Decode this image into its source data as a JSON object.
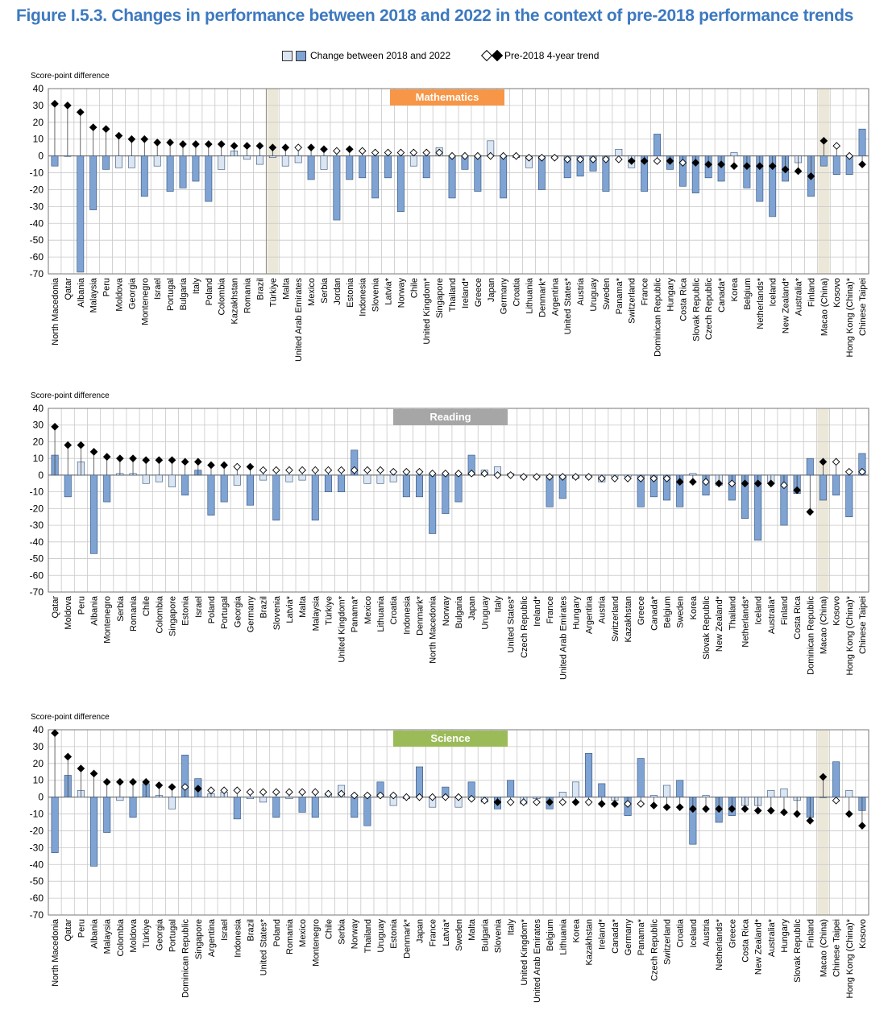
{
  "title": "Figure I.5.3. Changes in performance between 2018 and 2022 in the context of pre-2018 performance trends",
  "legend": {
    "bar_label": "Change between 2018 and 2022",
    "trend_label": "Pre-2018 4-year trend"
  },
  "colors": {
    "title": "#3d79c0",
    "bar_significant": "#7fa3d3",
    "bar_not_significant": "#dbe6f2",
    "bar_stroke": "#2f4f7a",
    "trend_significant": "#000000",
    "trend_not_significant": "#ffffff",
    "grid": "#c8c8c8",
    "separator_band": "#ece8d9",
    "math_banner": "#f79646",
    "reading_banner": "#a6a6a6",
    "science_banner": "#9bbb59"
  },
  "chart_data": [
    {
      "type": "bar",
      "subject": "Mathematics",
      "ylabel": "Score-point difference",
      "ylim": [
        -70,
        40
      ],
      "yticks": [
        40,
        30,
        20,
        10,
        0,
        -10,
        -20,
        -30,
        -40,
        -50,
        -60,
        -70
      ],
      "grid": true,
      "categories": [
        "North Macedonia",
        "Qatar",
        "Albania",
        "Malaysia",
        "Peru",
        "Moldova",
        "Georgia",
        "Montenegro",
        "Israel",
        "Portugal",
        "Bulgaria",
        "Italy",
        "Poland",
        "Colombia",
        "Kazakhstan",
        "Romania",
        "Brazil",
        "Türkiye",
        "Malta",
        "United Arab Emirates",
        "Mexico",
        "Serbia",
        "Jordan",
        "Estonia",
        "Indonesia",
        "Slovenia",
        "Latvia*",
        "Norway",
        "Chile",
        "United Kingdom*",
        "Singapore",
        "Thailand",
        "Ireland*",
        "Greece",
        "Japan",
        "Germany",
        "Croatia",
        "Lithuania",
        "Denmark*",
        "Argentina",
        "United States*",
        "Austria",
        "Uruguay",
        "Sweden",
        "Panama*",
        "Switzerland",
        "France",
        "Dominican Republic",
        "Hungary",
        "Costa Rica",
        "Slovak Republic",
        "Czech Republic",
        "Canada*",
        "Korea",
        "Belgium",
        "Netherlands*",
        "Iceland",
        "New Zealand*",
        "Australia*",
        "Finland",
        "Macao (China)",
        "Kosovo",
        "Hong Kong (China)*",
        "Chinese Taipei"
      ],
      "separators_after": [
        16,
        59
      ],
      "change_2018_2022": [
        -6,
        0,
        -69,
        -32,
        -8,
        -7,
        -7,
        -24,
        -6,
        -21,
        -19,
        -15,
        -27,
        -8,
        3,
        -2,
        -5,
        -1,
        -6,
        -4,
        -14,
        -8,
        -38,
        -14,
        -13,
        -25,
        -13,
        -33,
        -6,
        -13,
        5,
        -25,
        -8,
        -21,
        9,
        -25,
        -1,
        -7,
        -20,
        -1,
        -13,
        -12,
        -9,
        -21,
        4,
        -7,
        -21,
        13,
        -8,
        -18,
        -22,
        -13,
        -15,
        2,
        -19,
        -27,
        -36,
        -15,
        -4,
        -24,
        -6,
        -11,
        -11,
        16
      ],
      "change_significant": [
        true,
        false,
        true,
        true,
        true,
        false,
        false,
        true,
        false,
        true,
        true,
        true,
        true,
        false,
        false,
        false,
        false,
        false,
        false,
        false,
        true,
        false,
        true,
        true,
        true,
        true,
        true,
        true,
        false,
        true,
        false,
        true,
        true,
        true,
        false,
        true,
        false,
        false,
        true,
        false,
        true,
        true,
        true,
        true,
        false,
        false,
        true,
        true,
        true,
        true,
        true,
        true,
        true,
        false,
        true,
        true,
        true,
        true,
        false,
        true,
        true,
        true,
        true,
        true
      ],
      "trend": [
        31,
        30,
        26,
        17,
        16,
        12,
        10,
        10,
        8,
        8,
        7,
        7,
        7,
        7,
        6,
        6,
        6,
        5,
        5,
        5,
        5,
        4,
        3,
        4,
        3,
        2,
        2,
        2,
        2,
        2,
        2,
        0,
        0,
        0,
        0,
        0,
        0,
        -1,
        -1,
        -1,
        -2,
        -2,
        -2,
        -2,
        -2,
        -3,
        -3,
        -3,
        -3,
        -4,
        -4,
        -5,
        -5,
        -6,
        -6,
        -6,
        -6,
        -8,
        -9,
        -12,
        9,
        6,
        0,
        -5
      ],
      "trend_significant": [
        true,
        true,
        true,
        true,
        true,
        true,
        true,
        true,
        true,
        true,
        true,
        true,
        true,
        true,
        true,
        true,
        true,
        true,
        true,
        false,
        true,
        true,
        false,
        true,
        false,
        false,
        false,
        false,
        false,
        false,
        false,
        false,
        false,
        false,
        false,
        false,
        false,
        false,
        false,
        false,
        false,
        false,
        false,
        false,
        false,
        true,
        true,
        false,
        true,
        false,
        true,
        true,
        true,
        true,
        true,
        true,
        true,
        true,
        true,
        true,
        true,
        false,
        false,
        true
      ]
    },
    {
      "type": "bar",
      "subject": "Reading",
      "ylabel": "Score-point difference",
      "ylim": [
        -70,
        40
      ],
      "yticks": [
        40,
        30,
        20,
        10,
        0,
        -10,
        -20,
        -30,
        -40,
        -50,
        -60,
        -70
      ],
      "grid": true,
      "categories": [
        "Qatar",
        "Moldova",
        "Peru",
        "Albania",
        "Montenegro",
        "Serbia",
        "Romania",
        "Chile",
        "Colombia",
        "Singapore",
        "Estonia",
        "Israel",
        "Poland",
        "Portugal",
        "Georgia",
        "Germany",
        "Brazil",
        "Slovenia",
        "Latvia*",
        "Malta",
        "Malaysia",
        "Türkiye",
        "United Kingdom*",
        "Panama*",
        "Mexico",
        "Lithuania",
        "Croatia",
        "Indonesia",
        "Denmark*",
        "North Macedonia",
        "Norway",
        "Bulgaria",
        "Japan",
        "Uruguay",
        "Italy",
        "United States*",
        "Czech Republic",
        "Ireland*",
        "France",
        "United Arab Emirates",
        "Hungary",
        "Argentina",
        "Austria",
        "Switzerland",
        "Kazakhstan",
        "Greece",
        "Canada*",
        "Belgium",
        "Sweden",
        "Korea",
        "Slovak Republic",
        "New Zealand*",
        "Thailand",
        "Netherlands*",
        "Iceland",
        "Australia*",
        "Finland",
        "Costa Rica",
        "Dominican Republic",
        "Macao (China)",
        "Kosovo",
        "Hong Kong (China)*",
        "Chinese Taipei"
      ],
      "separators_after": [
        58
      ],
      "change_2018_2022": [
        12,
        -13,
        8,
        -47,
        -16,
        1,
        1,
        -5,
        -4,
        -7,
        -12,
        3,
        -24,
        -16,
        -6,
        -18,
        -3,
        -27,
        -4,
        -3,
        -27,
        -10,
        -10,
        15,
        -5,
        -5,
        -4,
        -13,
        -13,
        -35,
        -23,
        -16,
        12,
        3,
        5,
        1,
        -1,
        -1,
        -19,
        -14,
        -2,
        -1,
        -4,
        -1,
        -1,
        -19,
        -13,
        -15,
        -19,
        1,
        -12,
        -6,
        -15,
        -26,
        -39,
        -5,
        -30,
        -11,
        10,
        -15,
        -12,
        -25,
        13
      ],
      "change_significant": [
        true,
        true,
        false,
        true,
        true,
        false,
        false,
        false,
        false,
        false,
        true,
        true,
        true,
        true,
        false,
        true,
        false,
        true,
        false,
        false,
        true,
        true,
        true,
        true,
        false,
        false,
        false,
        true,
        true,
        true,
        true,
        true,
        true,
        false,
        false,
        false,
        false,
        false,
        true,
        true,
        false,
        false,
        false,
        false,
        false,
        true,
        true,
        true,
        true,
        false,
        true,
        false,
        true,
        true,
        true,
        false,
        true,
        true,
        true,
        true,
        true,
        true,
        true
      ],
      "trend": [
        29,
        18,
        18,
        14,
        11,
        10,
        10,
        9,
        9,
        9,
        8,
        8,
        6,
        6,
        5,
        5,
        3,
        3,
        3,
        3,
        3,
        3,
        3,
        3,
        3,
        3,
        2,
        2,
        2,
        1,
        1,
        1,
        1,
        1,
        0,
        0,
        -1,
        -1,
        -1,
        -1,
        -1,
        -1,
        -2,
        -2,
        -2,
        -2,
        -2,
        -2,
        -4,
        -4,
        -4,
        -5,
        -5,
        -5,
        -5,
        -5,
        -6,
        -9,
        -22,
        8,
        8,
        2,
        2
      ],
      "trend_significant": [
        true,
        true,
        true,
        true,
        true,
        true,
        true,
        true,
        true,
        true,
        true,
        true,
        true,
        true,
        false,
        true,
        false,
        false,
        false,
        false,
        false,
        false,
        false,
        false,
        false,
        false,
        false,
        false,
        false,
        false,
        false,
        false,
        false,
        false,
        false,
        false,
        false,
        false,
        false,
        false,
        false,
        false,
        false,
        false,
        false,
        false,
        false,
        false,
        true,
        true,
        false,
        true,
        false,
        true,
        true,
        true,
        false,
        true,
        true,
        true,
        false,
        false,
        false
      ]
    },
    {
      "type": "bar",
      "subject": "Science",
      "ylabel": "Score-point difference",
      "ylim": [
        -70,
        40
      ],
      "yticks": [
        40,
        30,
        20,
        10,
        0,
        -10,
        -20,
        -30,
        -40,
        -50,
        -60,
        -70
      ],
      "grid": true,
      "categories": [
        "North Macedonia",
        "Qatar",
        "Peru",
        "Albania",
        "Malaysia",
        "Colombia",
        "Moldova",
        "Türkiye",
        "Georgia",
        "Portugal",
        "Dominican Republic",
        "Singapore",
        "Argentina",
        "Israel",
        "Indonesia",
        "Brazil",
        "United States*",
        "Poland",
        "Romania",
        "Mexico",
        "Montenegro",
        "Chile",
        "Serbia",
        "Norway",
        "Thailand",
        "Uruguay",
        "Estonia",
        "Denmark*",
        "Japan",
        "France",
        "Latvia*",
        "Sweden",
        "Malta",
        "Bulgaria",
        "Slovenia",
        "Italy",
        "United Kingdom*",
        "United Arab Emirates",
        "Belgium",
        "Lithuania",
        "Korea",
        "Kazakhstan",
        "Ireland*",
        "Canada*",
        "Germany",
        "Panama*",
        "Czech Republic",
        "Switzerland",
        "Croatia",
        "Iceland",
        "Austria",
        "Netherlands*",
        "Greece",
        "Costa Rica",
        "New Zealand*",
        "Australia*",
        "Hungary",
        "Slovak Republic",
        "Finland",
        "Macao (China)",
        "Chinese Taipei",
        "Hong Kong (China)*",
        "Kosovo"
      ],
      "separators_after": [
        58
      ],
      "change_2018_2022": [
        -33,
        13,
        4,
        -41,
        -21,
        -2,
        -12,
        8,
        1,
        -7,
        25,
        11,
        2,
        3,
        -13,
        -1,
        -3,
        -12,
        -1,
        -9,
        -12,
        2,
        7,
        -12,
        -17,
        9,
        -5,
        -1,
        18,
        -6,
        6,
        -6,
        9,
        -3,
        -7,
        10,
        -4,
        -1,
        -7,
        3,
        9,
        26,
        8,
        -2,
        -11,
        23,
        1,
        7,
        10,
        -28,
        1,
        -15,
        -11,
        -5,
        -5,
        4,
        5,
        -2,
        -12,
        0,
        21,
        4,
        -8
      ],
      "change_significant": [
        true,
        true,
        false,
        true,
        true,
        false,
        true,
        true,
        false,
        false,
        true,
        true,
        false,
        false,
        true,
        false,
        false,
        true,
        false,
        true,
        true,
        false,
        false,
        true,
        true,
        true,
        false,
        false,
        true,
        false,
        true,
        false,
        true,
        false,
        true,
        true,
        false,
        false,
        true,
        false,
        false,
        true,
        true,
        false,
        true,
        true,
        false,
        false,
        true,
        true,
        false,
        true,
        true,
        false,
        false,
        false,
        false,
        false,
        true,
        false,
        true,
        false,
        true
      ],
      "trend": [
        38,
        24,
        17,
        14,
        9,
        9,
        9,
        9,
        7,
        6,
        6,
        5,
        4,
        4,
        4,
        3,
        3,
        3,
        3,
        3,
        3,
        2,
        2,
        1,
        1,
        1,
        1,
        0,
        0,
        0,
        0,
        0,
        -1,
        -2,
        -3,
        -3,
        -3,
        -3,
        -3,
        -3,
        -3,
        -3,
        -4,
        -4,
        -4,
        -4,
        -5,
        -6,
        -6,
        -7,
        -7,
        -7,
        -7,
        -7,
        -8,
        -8,
        -9,
        -10,
        -14,
        12,
        -2,
        -10,
        -17
      ],
      "trend_significant": [
        true,
        true,
        true,
        true,
        true,
        true,
        true,
        true,
        true,
        true,
        false,
        true,
        false,
        false,
        false,
        false,
        false,
        false,
        false,
        false,
        false,
        false,
        false,
        false,
        false,
        false,
        false,
        false,
        false,
        false,
        false,
        false,
        false,
        false,
        true,
        false,
        false,
        false,
        true,
        false,
        true,
        false,
        true,
        true,
        false,
        false,
        true,
        true,
        true,
        true,
        true,
        true,
        true,
        true,
        true,
        true,
        true,
        true,
        true,
        true,
        false,
        true,
        true
      ]
    }
  ]
}
